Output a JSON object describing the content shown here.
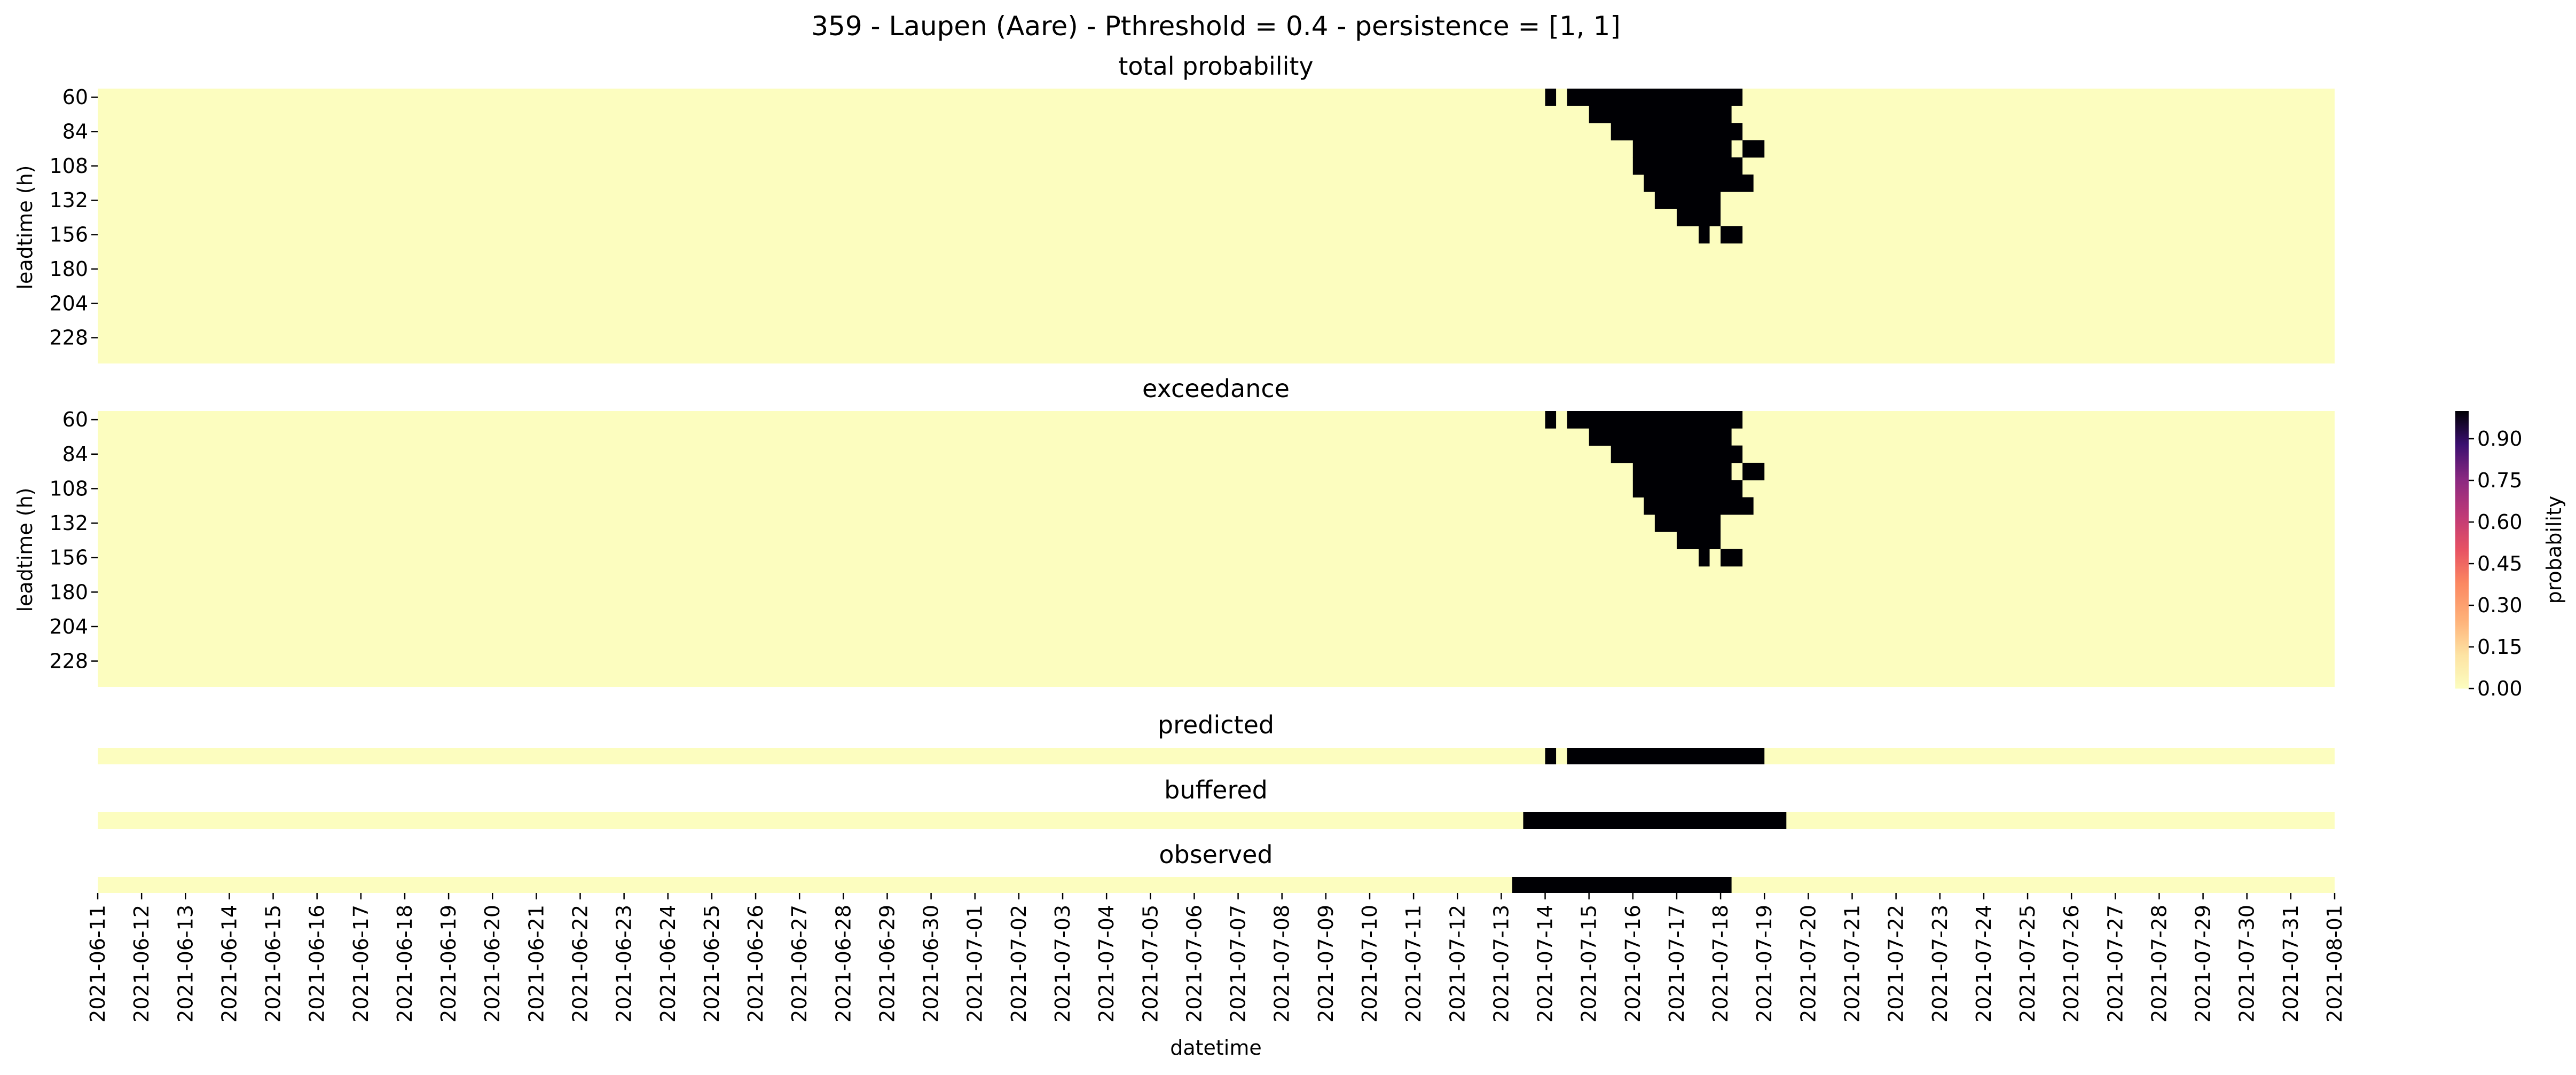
{
  "figure": {
    "suptitle": "359 - Laupen (Aare) - Pthreshold = 0.4 - persistence = [1, 1]"
  },
  "colors": {
    "background": "#ffffff",
    "cell_low": "#fcfdbf",
    "cell_high": "#000004",
    "colormap": "magma_r"
  },
  "chart_data": [
    {
      "type": "heatmap",
      "title": "total probability",
      "ylabel": "leadtime (h)",
      "y_tick_labels": [
        "60",
        "84",
        "108",
        "132",
        "156",
        "180",
        "204",
        "228"
      ],
      "leadtimes_h": [
        60,
        72,
        84,
        96,
        108,
        120,
        132,
        144,
        156,
        168,
        180,
        192,
        204,
        216,
        228,
        240
      ],
      "high_value_cells": [
        {
          "leadtime_h": 60,
          "periods": [
            [
              "2021-07-14T00",
              "2021-07-14T06"
            ],
            [
              "2021-07-14T12",
              "2021-07-18T12"
            ]
          ]
        },
        {
          "leadtime_h": 72,
          "periods": [
            [
              "2021-07-15T00",
              "2021-07-18T06"
            ]
          ]
        },
        {
          "leadtime_h": 84,
          "periods": [
            [
              "2021-07-15T12",
              "2021-07-18T12"
            ]
          ]
        },
        {
          "leadtime_h": 96,
          "periods": [
            [
              "2021-07-16T00",
              "2021-07-18T06"
            ],
            [
              "2021-07-18T12",
              "2021-07-19T00"
            ]
          ]
        },
        {
          "leadtime_h": 108,
          "periods": [
            [
              "2021-07-16T00",
              "2021-07-18T12"
            ]
          ]
        },
        {
          "leadtime_h": 120,
          "periods": [
            [
              "2021-07-16T06",
              "2021-07-18T18"
            ]
          ]
        },
        {
          "leadtime_h": 132,
          "periods": [
            [
              "2021-07-16T12",
              "2021-07-18T00"
            ]
          ]
        },
        {
          "leadtime_h": 144,
          "periods": [
            [
              "2021-07-17T00",
              "2021-07-18T00"
            ]
          ]
        },
        {
          "leadtime_h": 156,
          "periods": [
            [
              "2021-07-17T12",
              "2021-07-17T18"
            ],
            [
              "2021-07-18T00",
              "2021-07-18T12"
            ]
          ]
        }
      ]
    },
    {
      "type": "heatmap",
      "title": "exceedance",
      "ylabel": "leadtime (h)",
      "y_tick_labels": [
        "60",
        "84",
        "108",
        "132",
        "156",
        "180",
        "204",
        "228"
      ],
      "leadtimes_h": [
        60,
        72,
        84,
        96,
        108,
        120,
        132,
        144,
        156,
        168,
        180,
        192,
        204,
        216,
        228,
        240
      ],
      "high_value_cells": [
        {
          "leadtime_h": 60,
          "periods": [
            [
              "2021-07-14T00",
              "2021-07-14T06"
            ],
            [
              "2021-07-14T12",
              "2021-07-18T12"
            ]
          ]
        },
        {
          "leadtime_h": 72,
          "periods": [
            [
              "2021-07-15T00",
              "2021-07-18T06"
            ]
          ]
        },
        {
          "leadtime_h": 84,
          "periods": [
            [
              "2021-07-15T12",
              "2021-07-18T12"
            ]
          ]
        },
        {
          "leadtime_h": 96,
          "periods": [
            [
              "2021-07-16T00",
              "2021-07-18T06"
            ],
            [
              "2021-07-18T12",
              "2021-07-19T00"
            ]
          ]
        },
        {
          "leadtime_h": 108,
          "periods": [
            [
              "2021-07-16T00",
              "2021-07-18T12"
            ]
          ]
        },
        {
          "leadtime_h": 120,
          "periods": [
            [
              "2021-07-16T06",
              "2021-07-18T18"
            ]
          ]
        },
        {
          "leadtime_h": 132,
          "periods": [
            [
              "2021-07-16T12",
              "2021-07-18T00"
            ]
          ]
        },
        {
          "leadtime_h": 144,
          "periods": [
            [
              "2021-07-17T00",
              "2021-07-18T00"
            ]
          ]
        },
        {
          "leadtime_h": 156,
          "periods": [
            [
              "2021-07-17T12",
              "2021-07-17T18"
            ],
            [
              "2021-07-18T00",
              "2021-07-18T12"
            ]
          ]
        }
      ]
    },
    {
      "type": "heatmap",
      "title": "predicted",
      "high_value_periods": [
        [
          "2021-07-14T00",
          "2021-07-14T06"
        ],
        [
          "2021-07-14T12",
          "2021-07-19T00"
        ]
      ]
    },
    {
      "type": "heatmap",
      "title": "buffered",
      "high_value_periods": [
        [
          "2021-07-13T12",
          "2021-07-19T12"
        ]
      ]
    },
    {
      "type": "heatmap",
      "title": "observed",
      "high_value_periods": [
        [
          "2021-07-13T06",
          "2021-07-18T06"
        ]
      ]
    }
  ],
  "x_axis": {
    "xlabel": "datetime",
    "range": [
      "2021-06-11",
      "2021-08-01"
    ],
    "tick_labels": [
      "2021-06-11",
      "2021-06-12",
      "2021-06-13",
      "2021-06-14",
      "2021-06-15",
      "2021-06-16",
      "2021-06-17",
      "2021-06-18",
      "2021-06-19",
      "2021-06-20",
      "2021-06-21",
      "2021-06-22",
      "2021-06-23",
      "2021-06-24",
      "2021-06-25",
      "2021-06-26",
      "2021-06-27",
      "2021-06-28",
      "2021-06-29",
      "2021-06-30",
      "2021-07-01",
      "2021-07-02",
      "2021-07-03",
      "2021-07-04",
      "2021-07-05",
      "2021-07-06",
      "2021-07-07",
      "2021-07-08",
      "2021-07-09",
      "2021-07-10",
      "2021-07-11",
      "2021-07-12",
      "2021-07-13",
      "2021-07-14",
      "2021-07-15",
      "2021-07-16",
      "2021-07-17",
      "2021-07-18",
      "2021-07-19",
      "2021-07-20",
      "2021-07-21",
      "2021-07-22",
      "2021-07-23",
      "2021-07-24",
      "2021-07-25",
      "2021-07-26",
      "2021-07-27",
      "2021-07-28",
      "2021-07-29",
      "2021-07-30",
      "2021-07-31",
      "2021-08-01"
    ]
  },
  "colorbar": {
    "label": "probability",
    "range": [
      0,
      1
    ],
    "tick_labels": [
      "0.00",
      "0.15",
      "0.30",
      "0.45",
      "0.60",
      "0.75",
      "0.90"
    ],
    "tick_values": [
      0.0,
      0.15,
      0.3,
      0.45,
      0.6,
      0.75,
      0.9
    ]
  }
}
